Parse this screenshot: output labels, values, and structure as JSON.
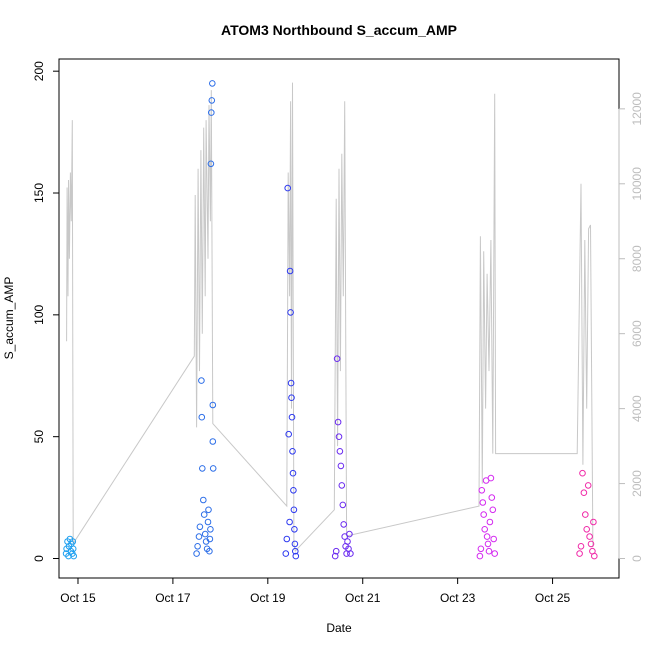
{
  "chart_data": {
    "type": "scatter",
    "title": "ATOM3 Northbound S_accum_AMP",
    "xlabel": "Date",
    "ylabel": "S_accum_AMP",
    "x_axis": {
      "range_days": [
        14.6,
        26.4
      ],
      "ticks": [
        {
          "value": 15,
          "label": "Oct 15"
        },
        {
          "value": 17,
          "label": "Oct 17"
        },
        {
          "value": 19,
          "label": "Oct 19"
        },
        {
          "value": 21,
          "label": "Oct 21"
        },
        {
          "value": 23,
          "label": "Oct 23"
        },
        {
          "value": 25,
          "label": "Oct 25"
        }
      ]
    },
    "y_axis_left": {
      "ylim": [
        -8,
        205
      ],
      "ticks": [
        0,
        50,
        100,
        150,
        200
      ]
    },
    "y_axis_right": {
      "ylim": [
        -520,
        13330
      ],
      "ticks": [
        0,
        2000,
        4000,
        6000,
        8000,
        10000,
        12000
      ],
      "color": "#bdbdbd"
    },
    "series": [
      {
        "name": "S_accum_AMP",
        "marker": "open-circle",
        "colors": [
          "#1fa0f0",
          "#2e6fe8",
          "#2e3af0",
          "#6a2af0",
          "#d42af0",
          "#f02aa8"
        ],
        "clusters": [
          {
            "x_start": 14.72,
            "x_end": 14.92,
            "color": "#1fa0f0",
            "points": [
              [
                14.75,
                2
              ],
              [
                14.76,
                4
              ],
              [
                14.78,
                7
              ],
              [
                14.8,
                1
              ],
              [
                14.81,
                5
              ],
              [
                14.83,
                8
              ],
              [
                14.85,
                3
              ],
              [
                14.86,
                6
              ],
              [
                14.88,
                2
              ],
              [
                14.89,
                7
              ],
              [
                14.9,
                4
              ],
              [
                14.91,
                1
              ]
            ]
          },
          {
            "x_start": 17.45,
            "x_end": 17.85,
            "color": "#2e6fe8",
            "points": [
              [
                17.5,
                2
              ],
              [
                17.52,
                5
              ],
              [
                17.55,
                9
              ],
              [
                17.57,
                13
              ],
              [
                17.6,
                73
              ],
              [
                17.61,
                58
              ],
              [
                17.62,
                37
              ],
              [
                17.64,
                24
              ],
              [
                17.66,
                18
              ],
              [
                17.68,
                10
              ],
              [
                17.7,
                7
              ],
              [
                17.72,
                4
              ],
              [
                17.74,
                15
              ],
              [
                17.75,
                20
              ],
              [
                17.77,
                3
              ],
              [
                17.78,
                8
              ],
              [
                17.79,
                12
              ],
              [
                17.8,
                162
              ],
              [
                17.81,
                183
              ],
              [
                17.82,
                188
              ],
              [
                17.83,
                195
              ],
              [
                17.84,
                63
              ],
              [
                17.84,
                48
              ],
              [
                17.85,
                37
              ]
            ]
          },
          {
            "x_start": 19.35,
            "x_end": 19.6,
            "color": "#2e3af0",
            "points": [
              [
                19.38,
                2
              ],
              [
                19.4,
                8
              ],
              [
                19.42,
                152
              ],
              [
                19.44,
                51
              ],
              [
                19.46,
                15
              ],
              [
                19.47,
                118
              ],
              [
                19.48,
                101
              ],
              [
                19.49,
                72
              ],
              [
                19.5,
                66
              ],
              [
                19.51,
                58
              ],
              [
                19.52,
                44
              ],
              [
                19.53,
                35
              ],
              [
                19.54,
                28
              ],
              [
                19.55,
                20
              ],
              [
                19.56,
                12
              ],
              [
                19.57,
                6
              ],
              [
                19.58,
                3
              ],
              [
                19.59,
                1
              ]
            ]
          },
          {
            "x_start": 20.4,
            "x_end": 20.8,
            "color": "#6a2af0",
            "points": [
              [
                20.42,
                1
              ],
              [
                20.44,
                3
              ],
              [
                20.46,
                82
              ],
              [
                20.48,
                56
              ],
              [
                20.5,
                50
              ],
              [
                20.52,
                44
              ],
              [
                20.54,
                38
              ],
              [
                20.56,
                30
              ],
              [
                20.58,
                22
              ],
              [
                20.6,
                14
              ],
              [
                20.62,
                9
              ],
              [
                20.64,
                5
              ],
              [
                20.66,
                2
              ],
              [
                20.68,
                7
              ],
              [
                20.7,
                4
              ],
              [
                20.72,
                10
              ],
              [
                20.74,
                2
              ]
            ]
          },
          {
            "x_start": 23.45,
            "x_end": 23.8,
            "color": "#d42af0",
            "points": [
              [
                23.47,
                1
              ],
              [
                23.49,
                4
              ],
              [
                23.51,
                28
              ],
              [
                23.53,
                23
              ],
              [
                23.55,
                18
              ],
              [
                23.57,
                12
              ],
              [
                23.6,
                32
              ],
              [
                23.62,
                9
              ],
              [
                23.64,
                6
              ],
              [
                23.66,
                3
              ],
              [
                23.68,
                15
              ],
              [
                23.7,
                33
              ],
              [
                23.72,
                25
              ],
              [
                23.74,
                20
              ],
              [
                23.76,
                8
              ],
              [
                23.78,
                2
              ]
            ]
          },
          {
            "x_start": 25.55,
            "x_end": 25.9,
            "color": "#f02aa8",
            "points": [
              [
                25.57,
                2
              ],
              [
                25.6,
                5
              ],
              [
                25.63,
                35
              ],
              [
                25.66,
                27
              ],
              [
                25.69,
                18
              ],
              [
                25.72,
                12
              ],
              [
                25.75,
                30
              ],
              [
                25.78,
                9
              ],
              [
                25.81,
                6
              ],
              [
                25.84,
                3
              ],
              [
                25.86,
                15
              ],
              [
                25.88,
                1
              ]
            ]
          }
        ]
      },
      {
        "name": "secondary (right axis)",
        "line_color": "#c8c8c8",
        "points": [
          [
            14.76,
            5800
          ],
          [
            14.77,
            9900
          ],
          [
            14.79,
            7000
          ],
          [
            14.8,
            10100
          ],
          [
            14.82,
            8000
          ],
          [
            14.84,
            10300
          ],
          [
            14.86,
            9000
          ],
          [
            14.88,
            11700
          ],
          [
            14.9,
            400
          ],
          [
            17.45,
            5400
          ],
          [
            17.47,
            9700
          ],
          [
            17.5,
            3500
          ],
          [
            17.53,
            10400
          ],
          [
            17.56,
            5000
          ],
          [
            17.59,
            10900
          ],
          [
            17.62,
            6000
          ],
          [
            17.65,
            11500
          ],
          [
            17.68,
            7000
          ],
          [
            17.7,
            11700
          ],
          [
            17.74,
            8000
          ],
          [
            17.76,
            12100
          ],
          [
            17.79,
            9000
          ],
          [
            17.81,
            12500
          ],
          [
            17.84,
            3600
          ],
          [
            19.4,
            1400
          ],
          [
            19.43,
            10300
          ],
          [
            19.46,
            7000
          ],
          [
            19.48,
            12200
          ],
          [
            19.5,
            4000
          ],
          [
            19.52,
            12700
          ],
          [
            19.55,
            400
          ],
          [
            19.58,
            200
          ],
          [
            20.4,
            1300
          ],
          [
            20.44,
            9600
          ],
          [
            20.47,
            3000
          ],
          [
            20.5,
            10400
          ],
          [
            20.53,
            5000
          ],
          [
            20.56,
            10800
          ],
          [
            20.59,
            7000
          ],
          [
            20.62,
            12200
          ],
          [
            20.66,
            600
          ],
          [
            23.45,
            1400
          ],
          [
            23.48,
            8600
          ],
          [
            23.52,
            2000
          ],
          [
            23.55,
            8200
          ],
          [
            23.59,
            4000
          ],
          [
            23.62,
            7600
          ],
          [
            23.66,
            5000
          ],
          [
            23.7,
            8500
          ],
          [
            23.74,
            2800
          ],
          [
            23.78,
            12400
          ],
          [
            23.8,
            2800
          ],
          [
            25.52,
            2800
          ],
          [
            25.6,
            10000
          ],
          [
            25.64,
            2500
          ],
          [
            25.68,
            8500
          ],
          [
            25.72,
            4000
          ],
          [
            25.76,
            8800
          ],
          [
            25.8,
            8900
          ],
          [
            25.85,
            300
          ]
        ]
      }
    ]
  }
}
